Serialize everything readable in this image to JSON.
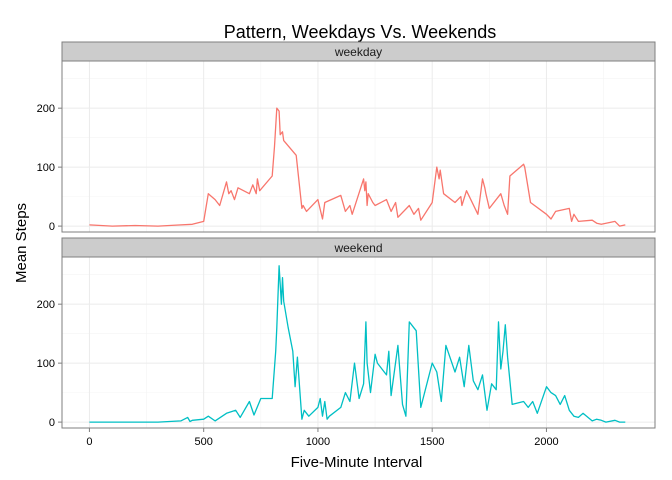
{
  "chart_data": {
    "type": "line",
    "title": "Pattern, Weekdays Vs. Weekends",
    "xlabel": "Five-Minute Interval",
    "ylabel": "Mean Steps",
    "xlim": [
      -120,
      2475
    ],
    "ylim": [
      -10,
      280
    ],
    "x_ticks": [
      0,
      500,
      1000,
      1500,
      2000
    ],
    "x_tick_labels": [
      "0",
      "500",
      "1000",
      "1500",
      "2000"
    ],
    "y_ticks": [
      0,
      100,
      200
    ],
    "y_tick_labels": [
      "0",
      "100",
      "200"
    ],
    "panels": [
      {
        "label": "weekday",
        "color": "#F8766D",
        "series": {
          "x": [
            0,
            100,
            200,
            300,
            400,
            450,
            500,
            520,
            550,
            570,
            600,
            610,
            620,
            635,
            650,
            700,
            715,
            730,
            735,
            745,
            800,
            810,
            820,
            830,
            835,
            845,
            850,
            905,
            930,
            935,
            950,
            1000,
            1020,
            1030,
            1100,
            1120,
            1140,
            1150,
            1200,
            1205,
            1210,
            1215,
            1220,
            1240,
            1250,
            1300,
            1320,
            1340,
            1350,
            1400,
            1420,
            1440,
            1450,
            1500,
            1520,
            1530,
            1535,
            1550,
            1600,
            1625,
            1630,
            1650,
            1700,
            1720,
            1730,
            1735,
            1750,
            1800,
            1815,
            1830,
            1840,
            1900,
            1905,
            1930,
            2000,
            2020,
            2040,
            2100,
            2110,
            2120,
            2140,
            2200,
            2220,
            2240,
            2300,
            2320,
            2345
          ],
          "y": [
            2,
            0,
            1,
            0,
            2,
            3,
            8,
            55,
            45,
            35,
            75,
            55,
            60,
            45,
            65,
            55,
            70,
            55,
            80,
            60,
            85,
            135,
            200,
            195,
            155,
            160,
            145,
            120,
            30,
            35,
            25,
            45,
            12,
            40,
            52,
            25,
            35,
            20,
            80,
            60,
            75,
            35,
            55,
            40,
            35,
            45,
            25,
            40,
            15,
            35,
            20,
            30,
            10,
            40,
            100,
            80,
            95,
            55,
            40,
            50,
            35,
            60,
            20,
            80,
            65,
            55,
            30,
            55,
            35,
            20,
            85,
            105,
            100,
            40,
            20,
            12,
            25,
            30,
            8,
            20,
            8,
            10,
            5,
            3,
            8,
            0,
            2
          ]
        }
      },
      {
        "label": "weekend",
        "color": "#00BFC4",
        "series": {
          "x": [
            0,
            100,
            200,
            300,
            400,
            430,
            440,
            450,
            500,
            520,
            550,
            600,
            640,
            660,
            700,
            720,
            750,
            800,
            815,
            820,
            830,
            840,
            845,
            850,
            870,
            890,
            900,
            910,
            930,
            940,
            960,
            1000,
            1010,
            1020,
            1030,
            1040,
            1050,
            1100,
            1120,
            1140,
            1160,
            1180,
            1200,
            1210,
            1215,
            1230,
            1250,
            1260,
            1300,
            1310,
            1320,
            1350,
            1370,
            1385,
            1400,
            1410,
            1420,
            1430,
            1450,
            1500,
            1520,
            1540,
            1560,
            1600,
            1620,
            1640,
            1660,
            1680,
            1700,
            1720,
            1740,
            1760,
            1780,
            1790,
            1800,
            1810,
            1820,
            1830,
            1850,
            1900,
            1920,
            1940,
            1960,
            2000,
            2020,
            2040,
            2060,
            2080,
            2100,
            2120,
            2140,
            2160,
            2200,
            2220,
            2240,
            2260,
            2300,
            2320,
            2345
          ],
          "y": [
            0,
            0,
            0,
            0,
            2,
            8,
            1,
            3,
            5,
            10,
            2,
            15,
            20,
            8,
            35,
            12,
            40,
            40,
            120,
            160,
            265,
            200,
            245,
            205,
            160,
            120,
            60,
            110,
            5,
            20,
            10,
            25,
            40,
            10,
            35,
            5,
            10,
            25,
            50,
            35,
            100,
            40,
            65,
            170,
            100,
            50,
            115,
            100,
            80,
            120,
            45,
            130,
            30,
            10,
            170,
            165,
            160,
            155,
            25,
            100,
            85,
            35,
            130,
            85,
            110,
            60,
            130,
            70,
            55,
            80,
            20,
            65,
            55,
            170,
            90,
            120,
            165,
            110,
            30,
            35,
            25,
            35,
            15,
            60,
            50,
            45,
            30,
            45,
            20,
            10,
            8,
            15,
            2,
            5,
            3,
            0,
            3,
            0,
            0
          ]
        }
      }
    ]
  }
}
